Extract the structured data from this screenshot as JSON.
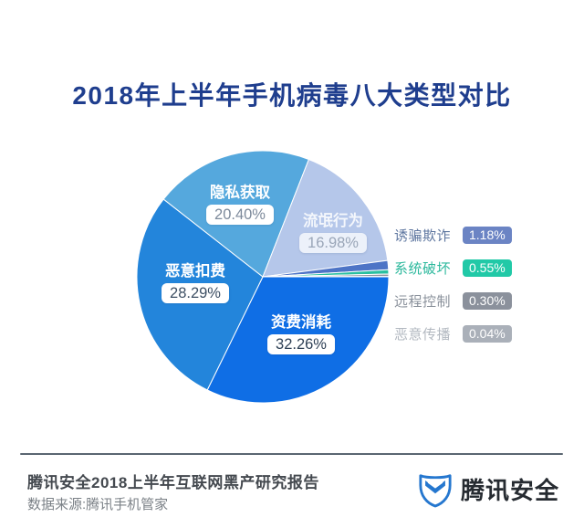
{
  "title": "2018年上半年手机病毒八大类型对比",
  "chart_data": {
    "type": "pie",
    "title": "2018年上半年手机病毒八大类型对比",
    "unit": "%",
    "total": 100.0,
    "start_angle_deg": 0,
    "direction": "clockwise",
    "legend_position": "right",
    "labels_on_chart": [
      "资费消耗",
      "恶意扣费",
      "隐私获取",
      "流氓行为"
    ],
    "legend_items": [
      "诱骗欺诈",
      "系统破坏",
      "远程控制",
      "恶意传播"
    ],
    "slices": [
      {
        "label": "资费消耗",
        "value": 32.26,
        "pct_label": "32.26%",
        "color": "#0f6ee5",
        "name_color": "#ffffff",
        "pill_bg": "#ffffff",
        "pill_text": "#2f4156"
      },
      {
        "label": "恶意扣费",
        "value": 28.29,
        "pct_label": "28.29%",
        "color": "#2385db",
        "name_color": "#ffffff",
        "pill_bg": "#ffffff",
        "pill_text": "#3d4f63"
      },
      {
        "label": "隐私获取",
        "value": 20.4,
        "pct_label": "20.40%",
        "color": "#55a8dd",
        "name_color": "#ffffff",
        "pill_bg": "#ffffff",
        "pill_text": "#7d8a9b"
      },
      {
        "label": "流氓行为",
        "value": 16.98,
        "pct_label": "16.98%",
        "color": "#b5c7ea",
        "name_color": "rgba(255,255,255,0.85)",
        "pill_bg": "rgba(255,255,255,0.75)",
        "pill_text": "#9aa6b8"
      },
      {
        "label": "诱骗欺诈",
        "value": 1.18,
        "pct_label": "1.18%",
        "color": "#4d74c6",
        "badge_bg": "#6b84c4",
        "label_color": "#5f77a0"
      },
      {
        "label": "系统破坏",
        "value": 0.55,
        "pct_label": "0.55%",
        "color": "#2abfa0",
        "badge_bg": "#21c9a7",
        "label_color": "#2bb89c"
      },
      {
        "label": "远程控制",
        "value": 0.3,
        "pct_label": "0.30%",
        "color": "#8b919c",
        "badge_bg": "#8b919c",
        "label_color": "#8a919b"
      },
      {
        "label": "恶意传播",
        "value": 0.04,
        "pct_label": "0.04%",
        "color": "#bcc2c9",
        "badge_bg": "#aab0b9",
        "label_color": "#b2b8c0"
      }
    ]
  },
  "footer": {
    "report_title": "腾讯安全2018上半年互联网黑产研究报告",
    "data_source": "数据来源:腾讯手机管家",
    "brand_name": "腾讯安全"
  },
  "colors": {
    "title-color": "#1f3e8e",
    "brand-blue": "#2577cf",
    "divider-color": "#5a6671",
    "footer-title-color": "#44494f",
    "footer-source-color": "#7b8187",
    "brand-text-color": "#262b31",
    "background": "#ffffff"
  }
}
